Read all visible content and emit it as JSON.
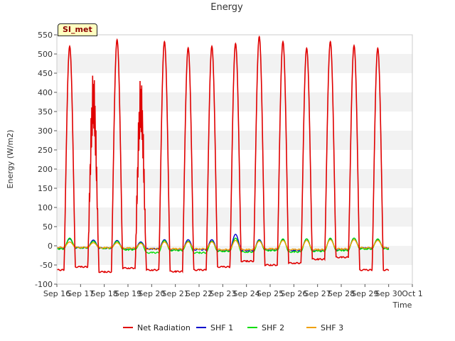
{
  "chart_data": {
    "type": "line",
    "title": "Energy",
    "xlabel": "Time",
    "ylabel": "Energy (W/m2)",
    "site_label": "SI_met",
    "ylim": [
      -100,
      550
    ],
    "xlim": [
      16,
      31
    ],
    "yticks": [
      -100,
      -50,
      0,
      50,
      100,
      150,
      200,
      250,
      300,
      350,
      400,
      450,
      500,
      550
    ],
    "xticks": [
      {
        "value": 16,
        "label": "Sep 16"
      },
      {
        "value": 17,
        "label": "Sep 17"
      },
      {
        "value": 18,
        "label": "Sep 18"
      },
      {
        "value": 19,
        "label": "Sep 19"
      },
      {
        "value": 20,
        "label": "Sep 20"
      },
      {
        "value": 21,
        "label": "Sep 21"
      },
      {
        "value": 22,
        "label": "Sep 22"
      },
      {
        "value": 23,
        "label": "Sep 23"
      },
      {
        "value": 24,
        "label": "Sep 24"
      },
      {
        "value": 25,
        "label": "Sep 25"
      },
      {
        "value": 26,
        "label": "Sep 26"
      },
      {
        "value": 27,
        "label": "Sep 27"
      },
      {
        "value": 28,
        "label": "Sep 28"
      },
      {
        "value": 29,
        "label": "Sep 29"
      },
      {
        "value": 30,
        "label": "Sep 30"
      },
      {
        "value": 31,
        "label": "Oct 1"
      }
    ],
    "grid": "horizontal bands",
    "legend_position": "bottom-center",
    "series": [
      {
        "name": "Net Radiation",
        "color": "#e00000",
        "daily_peaks": [
          520,
          475,
          537,
          460,
          532,
          516,
          520,
          527,
          545,
          532,
          515,
          532,
          522,
          515
        ],
        "night_values": [
          -63,
          -55,
          -68,
          -58,
          -63,
          -67,
          -63,
          -55,
          -40,
          -50,
          -45,
          -35,
          -30,
          -63
        ]
      },
      {
        "name": "SHF 1",
        "color": "#0000cc",
        "daily_peaks": [
          18,
          15,
          14,
          10,
          16,
          16,
          16,
          30,
          16,
          16,
          18,
          18,
          20,
          17
        ],
        "night_values": [
          -6,
          -5,
          -6,
          -8,
          -8,
          -10,
          -10,
          -12,
          -12,
          -10,
          -12,
          -12,
          -10,
          -6
        ]
      },
      {
        "name": "SHF 2",
        "color": "#00dd00",
        "daily_peaks": [
          20,
          12,
          12,
          8,
          14,
          12,
          12,
          20,
          14,
          18,
          18,
          20,
          20,
          18
        ],
        "night_values": [
          -8,
          -5,
          -6,
          -10,
          -18,
          -12,
          -18,
          -14,
          -16,
          -12,
          -16,
          -14,
          -12,
          -8
        ]
      },
      {
        "name": "SHF 3",
        "color": "#f0a000",
        "daily_peaks": [
          10,
          8,
          8,
          6,
          10,
          10,
          10,
          14,
          12,
          14,
          14,
          16,
          16,
          14
        ],
        "night_values": [
          -4,
          -4,
          -5,
          -6,
          -8,
          -8,
          -8,
          -10,
          -10,
          -8,
          -10,
          -10,
          -8,
          -5
        ]
      }
    ]
  }
}
